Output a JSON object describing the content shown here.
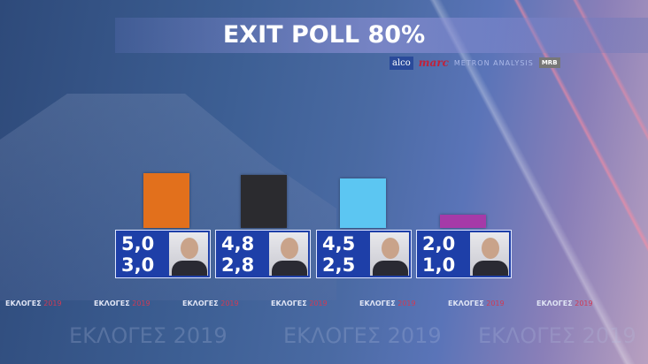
{
  "title": "EXIT POLL 80%",
  "logos": {
    "alco": "alco",
    "marc": "marc",
    "metron": "METRON ANALYSIS",
    "mrb": "MRB"
  },
  "ticker": {
    "word": "ΕΚΛΟΓΕΣ",
    "year": "2019"
  },
  "chart_data": {
    "type": "bar",
    "title": "EXIT POLL 80%",
    "categories": [
      "",
      "",
      "",
      ""
    ],
    "colors": [
      "#e2701c",
      "#2b2b2f",
      "#5cc6f2",
      "#a63aa8"
    ],
    "series": [
      {
        "values": [
          5.0,
          4.8,
          4.5,
          2.0
        ]
      },
      {
        "values": [
          3.0,
          2.8,
          2.5,
          1.0
        ]
      }
    ],
    "labels_upper": [
      "5,0",
      "4,8",
      "4,5",
      "2,0"
    ],
    "labels_lower": [
      "3,0",
      "2,8",
      "2,5",
      "1,0"
    ],
    "grid": false
  }
}
